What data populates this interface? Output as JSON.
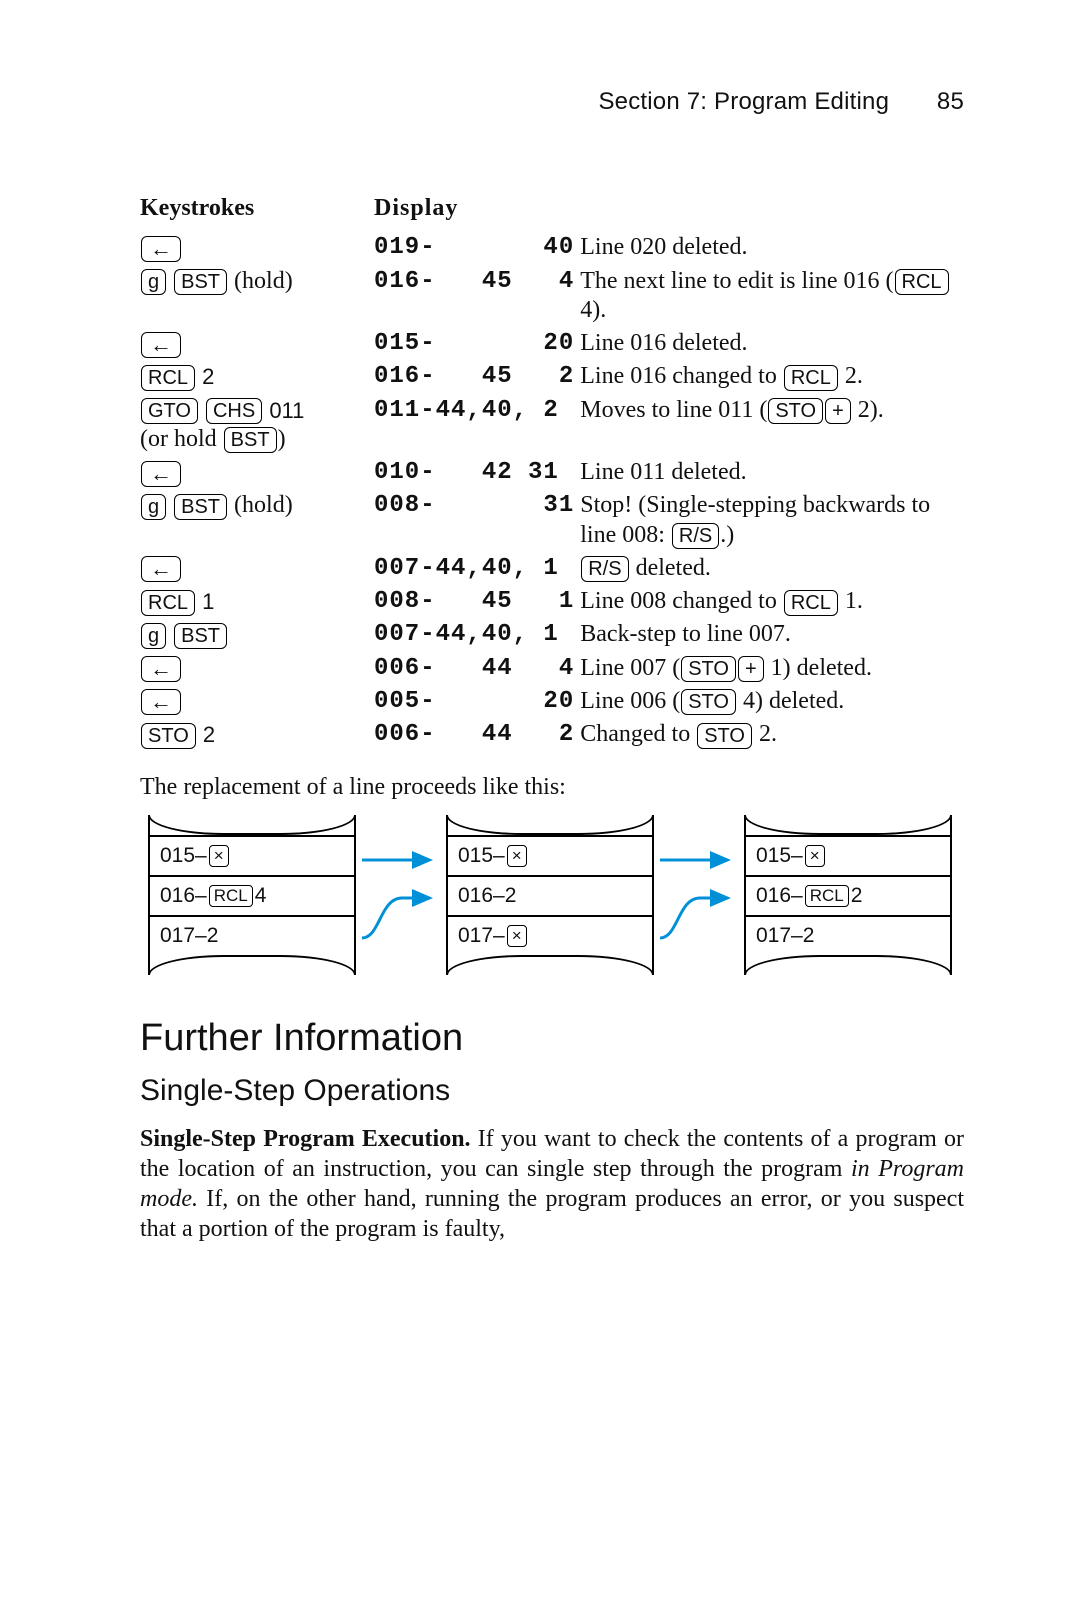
{
  "header": {
    "section": "Section 7: Program Editing",
    "page": "85"
  },
  "table": {
    "head": {
      "keystrokes": "Keystrokes",
      "display": "Display"
    },
    "rows": [
      {
        "ks": [
          {
            "t": "key",
            "cls": "arrow",
            "v": "←"
          }
        ],
        "disp": "019-       40",
        "desc": [
          {
            "t": "txt",
            "v": "Line 020 deleted."
          }
        ]
      },
      {
        "ks": [
          {
            "t": "key",
            "v": "g"
          },
          {
            "t": "sp"
          },
          {
            "t": "key",
            "v": "BST"
          },
          {
            "t": "txt",
            "cls": "serif",
            "v": " (hold)"
          }
        ],
        "disp": "016-   45   4",
        "desc": [
          {
            "t": "txt",
            "v": "The next line to edit is line 016 ("
          },
          {
            "t": "key",
            "v": "RCL"
          },
          {
            "t": "txt",
            "v": " 4)."
          }
        ]
      },
      {
        "ks": [
          {
            "t": "key",
            "cls": "arrow",
            "v": "←"
          }
        ],
        "disp": "015-       20",
        "desc": [
          {
            "t": "txt",
            "v": "Line 016 deleted."
          }
        ]
      },
      {
        "ks": [
          {
            "t": "key",
            "v": "RCL"
          },
          {
            "t": "txt",
            "cls": "plain",
            "v": " 2"
          }
        ],
        "disp": "016-   45   2",
        "desc": [
          {
            "t": "txt",
            "v": "Line 016 changed to "
          },
          {
            "t": "key",
            "v": "RCL"
          },
          {
            "t": "txt",
            "v": " 2."
          }
        ]
      },
      {
        "ks": [
          {
            "t": "key",
            "v": "GTO"
          },
          {
            "t": "sp"
          },
          {
            "t": "key",
            "v": "CHS"
          },
          {
            "t": "txt",
            "cls": "plain",
            "v": " 011"
          },
          {
            "t": "br"
          },
          {
            "t": "txt",
            "cls": "serif",
            "v": "(or hold "
          },
          {
            "t": "key",
            "v": "BST"
          },
          {
            "t": "txt",
            "cls": "serif",
            "v": ")"
          }
        ],
        "disp": "011-44,40, 2",
        "desc": [
          {
            "t": "txt",
            "v": "Moves to line 011 ("
          },
          {
            "t": "key",
            "v": "STO"
          },
          {
            "t": "key",
            "v": "+"
          },
          {
            "t": "txt",
            "v": " 2)."
          }
        ]
      },
      {
        "ks": [
          {
            "t": "key",
            "cls": "arrow",
            "v": "←"
          }
        ],
        "disp": "010-   42 31",
        "desc": [
          {
            "t": "txt",
            "v": "Line 011 deleted."
          }
        ]
      },
      {
        "ks": [
          {
            "t": "key",
            "v": "g"
          },
          {
            "t": "sp"
          },
          {
            "t": "key",
            "v": "BST"
          },
          {
            "t": "txt",
            "cls": "serif",
            "v": " (hold)"
          }
        ],
        "disp": "008-       31",
        "desc": [
          {
            "t": "txt",
            "v": "Stop! (Single-stepping backwards to line 008: "
          },
          {
            "t": "key",
            "v": "R/S"
          },
          {
            "t": "txt",
            "v": ".)"
          }
        ]
      },
      {
        "ks": [
          {
            "t": "key",
            "cls": "arrow",
            "v": "←"
          }
        ],
        "disp": "007-44,40, 1",
        "desc": [
          {
            "t": "key",
            "v": "R/S"
          },
          {
            "t": "txt",
            "v": " deleted."
          }
        ]
      },
      {
        "ks": [
          {
            "t": "key",
            "v": "RCL"
          },
          {
            "t": "txt",
            "cls": "plain",
            "v": " 1"
          }
        ],
        "disp": "008-   45   1",
        "desc": [
          {
            "t": "txt",
            "v": "Line 008 changed to "
          },
          {
            "t": "key",
            "v": "RCL"
          },
          {
            "t": "txt",
            "v": " 1."
          }
        ]
      },
      {
        "ks": [
          {
            "t": "key",
            "v": "g"
          },
          {
            "t": "sp"
          },
          {
            "t": "key",
            "v": "BST"
          }
        ],
        "disp": "007-44,40, 1",
        "desc": [
          {
            "t": "txt",
            "v": "Back-step to line 007."
          }
        ]
      },
      {
        "ks": [
          {
            "t": "key",
            "cls": "arrow",
            "v": "←"
          }
        ],
        "disp": "006-   44   4",
        "desc": [
          {
            "t": "txt",
            "v": "Line 007 ("
          },
          {
            "t": "key",
            "v": "STO"
          },
          {
            "t": "key",
            "v": "+"
          },
          {
            "t": "txt",
            "v": " 1) deleted."
          }
        ]
      },
      {
        "ks": [
          {
            "t": "key",
            "cls": "arrow",
            "v": "←"
          }
        ],
        "disp": "005-       20",
        "desc": [
          {
            "t": "txt",
            "v": "Line 006 ("
          },
          {
            "t": "key",
            "v": "STO"
          },
          {
            "t": "txt",
            "v": " 4) deleted."
          }
        ]
      },
      {
        "ks": [
          {
            "t": "key",
            "v": "STO"
          },
          {
            "t": "txt",
            "cls": "plain",
            "v": " 2"
          }
        ],
        "disp": "006-   44   2",
        "desc": [
          {
            "t": "txt",
            "v": "Changed to "
          },
          {
            "t": "key",
            "v": "STO"
          },
          {
            "t": "txt",
            "v": " 2."
          }
        ]
      }
    ]
  },
  "intertext": "The replacement of a line proceeds like this:",
  "flow": {
    "panels": [
      [
        {
          "pre": "015–",
          "keys": [
            {
              "t": "key",
              "v": "×"
            }
          ]
        },
        {
          "pre": "016–",
          "keys": [
            {
              "t": "key",
              "v": "RCL"
            },
            {
              "t": "txt",
              "v": "4"
            }
          ]
        },
        {
          "pre": "017–2",
          "keys": []
        }
      ],
      [
        {
          "pre": "015–",
          "keys": [
            {
              "t": "key",
              "v": "×"
            }
          ]
        },
        {
          "pre": "016–2",
          "keys": []
        },
        {
          "pre": "017–",
          "keys": [
            {
              "t": "key",
              "v": "×"
            }
          ]
        }
      ],
      [
        {
          "pre": "015–",
          "keys": [
            {
              "t": "key",
              "v": "×"
            }
          ]
        },
        {
          "pre": "016–",
          "keys": [
            {
              "t": "key",
              "v": "RCL"
            },
            {
              "t": "txt",
              "v": "2"
            }
          ]
        },
        {
          "pre": "017–2",
          "keys": []
        }
      ]
    ],
    "arrow_color": "#0090d8"
  },
  "h1": "Further Information",
  "h2": "Single-Step Operations",
  "para": {
    "runin": "Single-Step Program Execution.",
    "rest1": " If you want to check the contents of a program or the location of an instruction, you can single step through the program ",
    "em": "in Program mode.",
    "rest2": " If, on the other hand, running the program produces an error, or you suspect that a portion of the program is faulty,"
  }
}
